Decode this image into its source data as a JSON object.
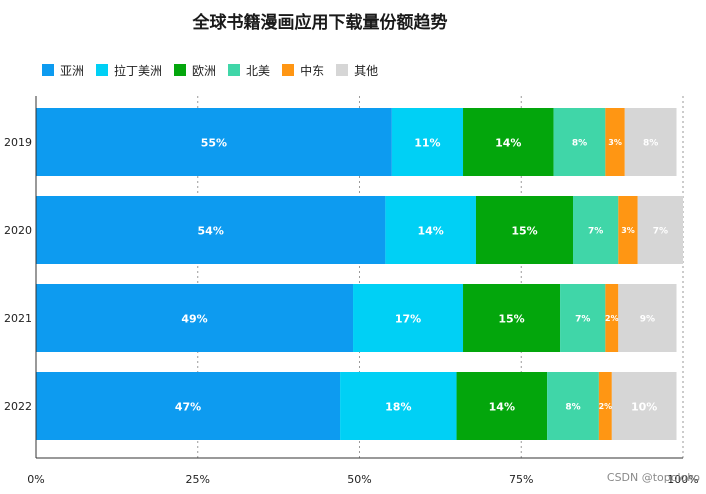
{
  "chart_data": {
    "type": "bar",
    "orientation": "horizontal",
    "stacked": true,
    "title": "全球书籍漫画应用下载量份额趋势",
    "categories": [
      "2019",
      "2020",
      "2021",
      "2022"
    ],
    "series": [
      {
        "name": "亚洲",
        "color": "#0d9bf0",
        "values": [
          55,
          54,
          49,
          47
        ],
        "labels": [
          "55%",
          "54%",
          "49%",
          "47%"
        ]
      },
      {
        "name": "拉丁美洲",
        "color": "#00d0f5",
        "values": [
          11,
          14,
          17,
          18
        ],
        "labels": [
          "11%",
          "14%",
          "17%",
          "18%"
        ]
      },
      {
        "name": "欧洲",
        "color": "#03a60c",
        "values": [
          14,
          15,
          15,
          14
        ],
        "labels": [
          "14%",
          "15%",
          "15%",
          "14%"
        ]
      },
      {
        "name": "北美",
        "color": "#40d6a8",
        "values": [
          8,
          7,
          7,
          8
        ],
        "labels": [
          "8%",
          "7%",
          "7%",
          "8%"
        ]
      },
      {
        "name": "中东",
        "color": "#ff9613",
        "values": [
          3,
          3,
          2,
          2
        ],
        "labels": [
          "3%",
          "3%",
          "2%",
          "2%"
        ]
      },
      {
        "name": "其他",
        "color": "#d6d6d6",
        "values": [
          8,
          7,
          9,
          10
        ],
        "labels": [
          "8%",
          "7%",
          "9%",
          "10%"
        ]
      }
    ],
    "xlim": [
      0,
      100
    ],
    "xticks": [
      "0%",
      "25%",
      "50%",
      "75%",
      "100%"
    ],
    "grid": true,
    "legend_position": "top-left"
  },
  "watermark": "CSDN @topoloko"
}
